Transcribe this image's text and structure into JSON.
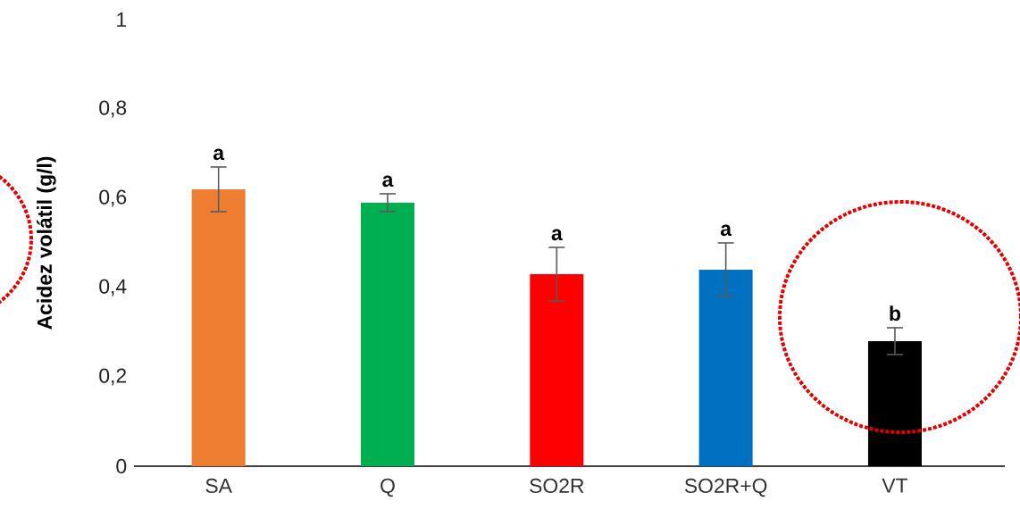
{
  "chart_data": {
    "type": "bar",
    "ylabel": "Acidez volátil (g/l)",
    "categories": [
      "SA",
      "Q",
      "SO2R",
      "SO2R+Q",
      "VT"
    ],
    "values": [
      0.62,
      0.59,
      0.43,
      0.44,
      0.28
    ],
    "errors": [
      0.05,
      0.02,
      0.06,
      0.06,
      0.03
    ],
    "colors": [
      "#ed7d31",
      "#00b050",
      "#ff0000",
      "#0070c0",
      "#000000"
    ],
    "ylim": [
      0,
      1
    ],
    "yticks": [
      0,
      {
        "value": 0.2,
        "label": "0,2"
      },
      {
        "value": 0.4,
        "label": "0,4"
      },
      {
        "value": 0.6,
        "label": "0,6"
      },
      {
        "value": 0.8,
        "label": "0,8"
      },
      1
    ],
    "annotations": [
      "a",
      "a",
      "a",
      "a",
      "b"
    ],
    "grid": false
  }
}
